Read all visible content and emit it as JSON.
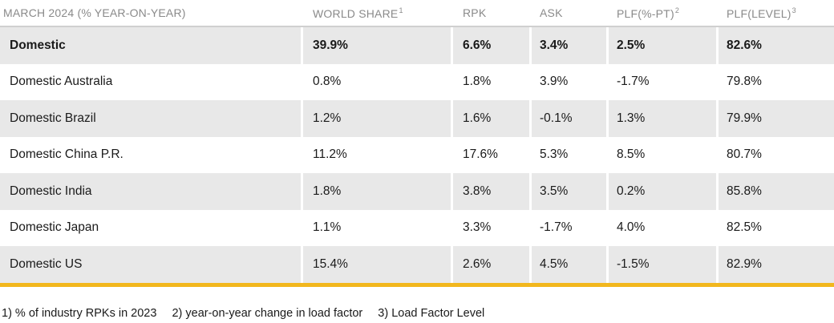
{
  "table": {
    "headers": [
      {
        "label": "MARCH 2024 (% YEAR-ON-YEAR)",
        "sup": ""
      },
      {
        "label": "WORLD SHARE",
        "sup": "1"
      },
      {
        "label": "RPK",
        "sup": ""
      },
      {
        "label": "ASK",
        "sup": ""
      },
      {
        "label": "PLF(%-PT)",
        "sup": "2"
      },
      {
        "label": "PLF(LEVEL)",
        "sup": "3"
      }
    ],
    "rows": [
      [
        "Domestic",
        "39.9%",
        "6.6%",
        "3.4%",
        "2.5%",
        "82.6%"
      ],
      [
        "Domestic Australia",
        "0.8%",
        "1.8%",
        "3.9%",
        "-1.7%",
        "79.8%"
      ],
      [
        "Domestic Brazil",
        "1.2%",
        "1.6%",
        "-0.1%",
        "1.3%",
        "79.9%"
      ],
      [
        "Domestic China P.R.",
        "11.2%",
        "17.6%",
        "5.3%",
        "8.5%",
        "80.7%"
      ],
      [
        "Domestic India",
        "1.8%",
        "3.8%",
        "3.5%",
        "0.2%",
        "85.8%"
      ],
      [
        "Domestic Japan",
        "1.1%",
        "3.3%",
        "-1.7%",
        "4.0%",
        "82.5%"
      ],
      [
        "Domestic US",
        "15.4%",
        "2.6%",
        "4.5%",
        "-1.5%",
        "82.9%"
      ]
    ]
  },
  "footnotes": [
    "1) % of industry RPKs in 2023",
    "2) year-on-year change in load factor",
    "3) Load Factor Level"
  ],
  "colors": {
    "accent_bar": "#f2b71d",
    "row_shade": "#e8e8e8",
    "header_text": "#8a8a8a"
  }
}
